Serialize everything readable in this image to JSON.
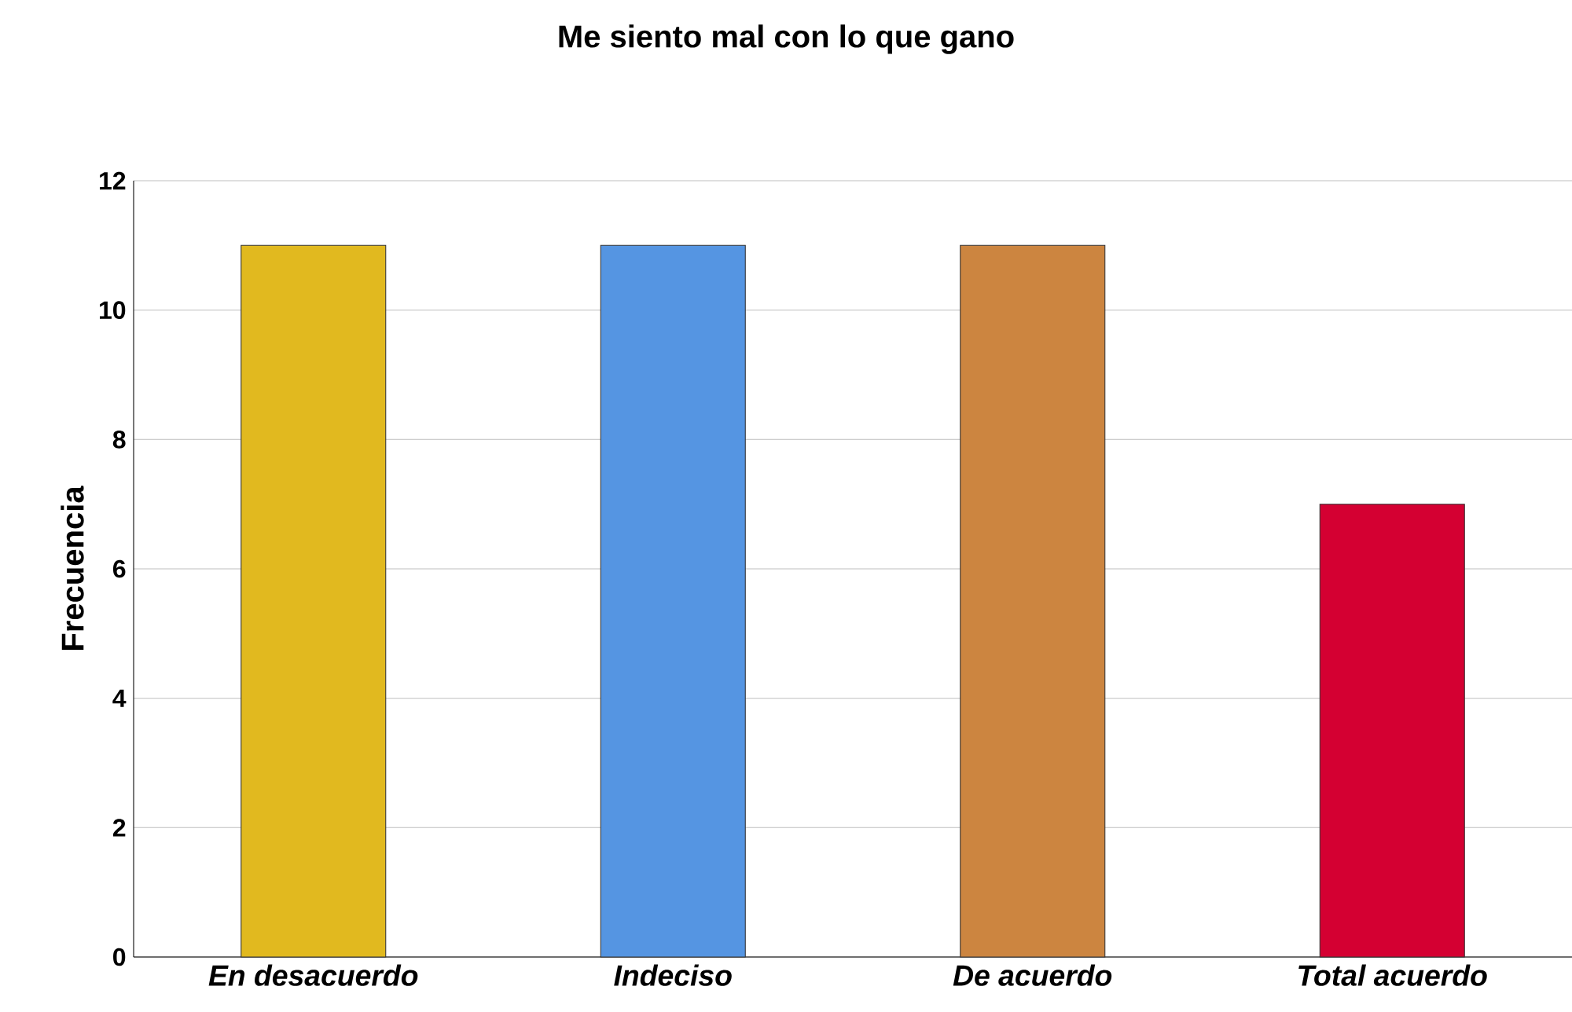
{
  "chart_data": {
    "type": "bar",
    "title": "Me siento mal con lo que gano",
    "ylabel": "Frecuencia",
    "categories": [
      "En desacuerdo",
      "Indeciso",
      "De acuerdo",
      "Total acuerdo"
    ],
    "values": [
      11,
      11,
      11,
      7
    ],
    "colors": [
      "#e1b91f",
      "#5595e2",
      "#cc8540",
      "#d40032"
    ],
    "ylim": [
      0,
      12
    ],
    "yticks": [
      0,
      2,
      4,
      6,
      8,
      10,
      12
    ],
    "grid": "y"
  }
}
